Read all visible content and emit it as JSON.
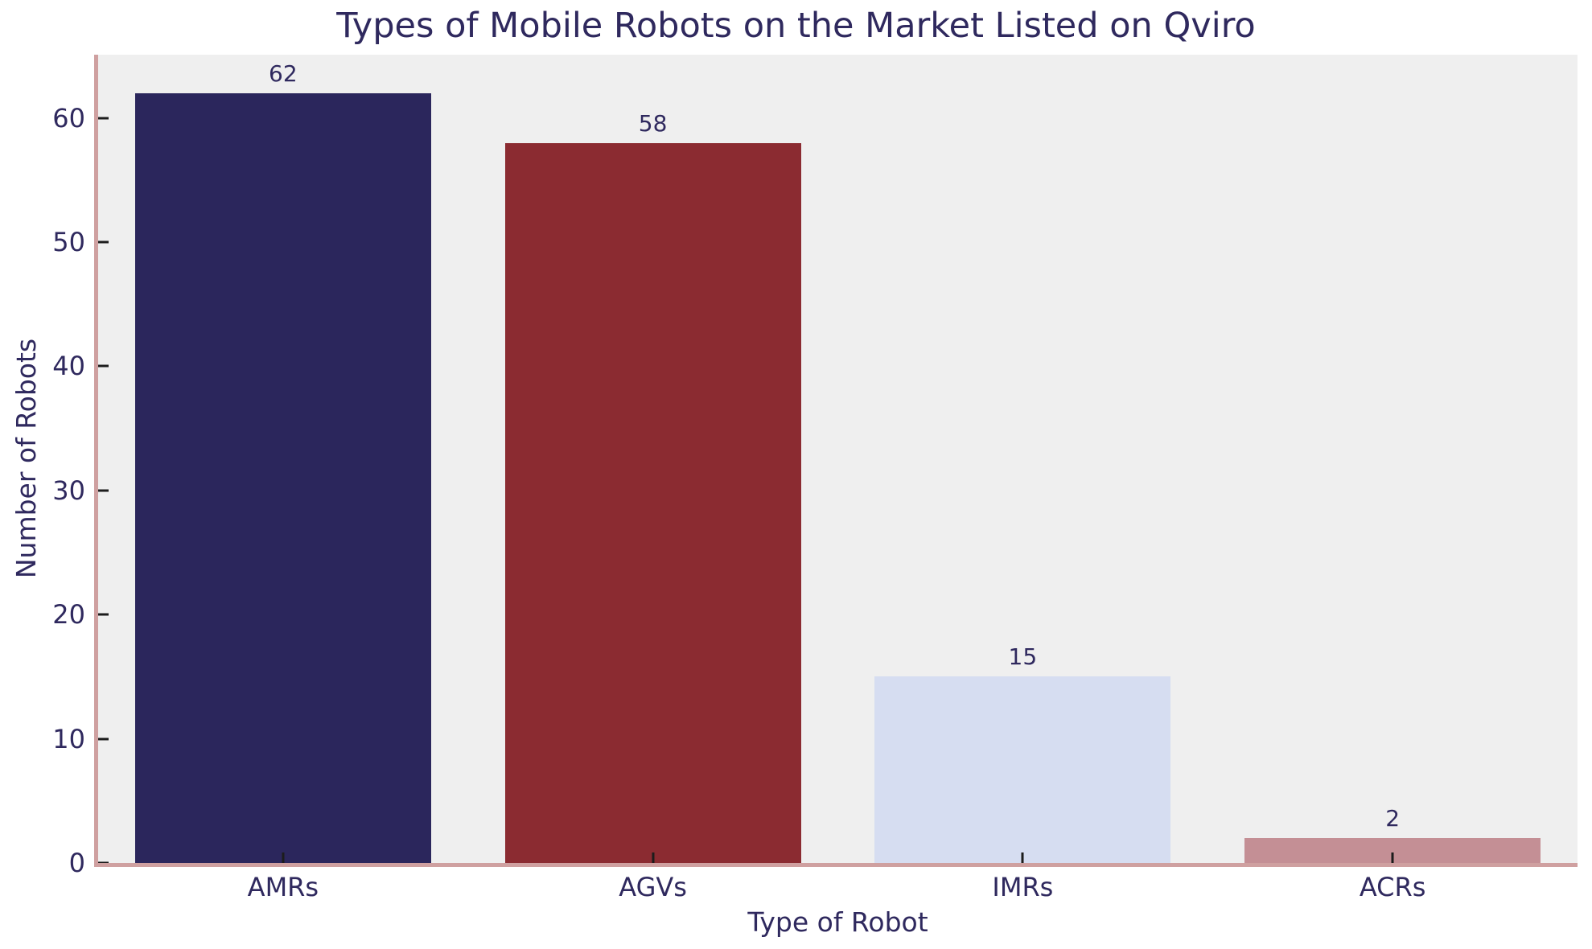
{
  "chart_data": {
    "type": "bar",
    "title": "Types of Mobile Robots on the Market Listed on Qviro",
    "categories": [
      "AMRs",
      "AGVs",
      "IMRs",
      "ACRs"
    ],
    "values": [
      62,
      58,
      15,
      2
    ],
    "bar_value_labels": [
      "62",
      "58",
      "15",
      "2"
    ],
    "xlabel": "Type of Robot",
    "ylabel": "Number of Robots",
    "ylim": [
      0,
      65.1
    ],
    "yticks": [
      0,
      10,
      20,
      30,
      40,
      50,
      60
    ],
    "grid": false,
    "legend": false,
    "bar_colors": [
      "#2b265c",
      "#8b2b31",
      "#d6ddf1",
      "#c48f95"
    ],
    "colors": {
      "figure_background": "#ffffff",
      "plot_background": "#efefef",
      "spine": "#cfa0a0",
      "tick_mark": "#1c1c1c",
      "text": "#2f295e"
    }
  }
}
